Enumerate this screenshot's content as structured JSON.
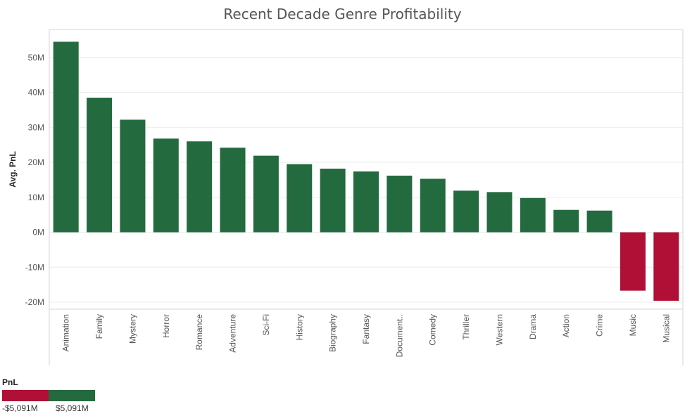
{
  "chart_data": {
    "type": "bar",
    "title": "Recent Decade Genre Profitability",
    "ylabel": "Avg. PnL",
    "xlabel": "",
    "categories": [
      "Animation",
      "Family",
      "Mystery",
      "Horror",
      "Romance",
      "Adventure",
      "Sci-Fi",
      "History",
      "Biography",
      "Fantasy",
      "Document..",
      "Comedy",
      "Thriller",
      "Western",
      "Drama",
      "Action",
      "Crime",
      "Music",
      "Musical"
    ],
    "values": [
      54.5,
      38.5,
      32.2,
      26.8,
      26.0,
      24.2,
      21.9,
      19.5,
      18.2,
      17.4,
      16.2,
      15.3,
      11.9,
      11.5,
      9.8,
      6.4,
      6.2,
      -16.7,
      -19.6
    ],
    "ylim": [
      -22,
      58
    ],
    "yticks": [
      -20,
      -10,
      0,
      10,
      20,
      30,
      40,
      50
    ],
    "ytick_labels": [
      "-20M",
      "-10M",
      "0M",
      "10M",
      "20M",
      "30M",
      "40M",
      "50M"
    ],
    "grid": true,
    "positive_color": "#246a3f",
    "negative_color": "#b01036"
  },
  "legend": {
    "title": "PnL",
    "min_label": "-$5,091M",
    "max_label": "$5,091M",
    "negative_color": "#b01036",
    "positive_color": "#246a3f"
  }
}
